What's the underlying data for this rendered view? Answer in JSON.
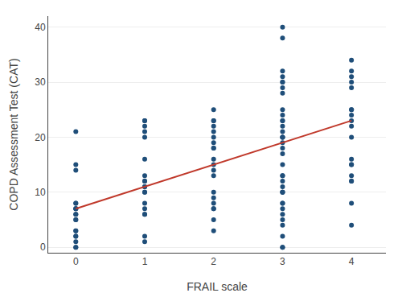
{
  "chart_data": {
    "type": "scatter",
    "xlabel": "FRAIL scale",
    "ylabel": "COPD Assessment Test (CAT)",
    "series": [
      {
        "type": "scatter",
        "marker": "circle",
        "color": "#1f4e79",
        "x": [
          0,
          0,
          0,
          0,
          0,
          0,
          0,
          0,
          0,
          0,
          0,
          0,
          0,
          0,
          0,
          0,
          0,
          0,
          0
        ],
        "values": [
          0,
          0,
          1,
          2,
          2,
          3,
          3,
          5,
          5,
          6,
          6,
          7,
          7,
          7,
          8,
          8,
          14,
          15,
          21
        ]
      },
      {
        "type": "scatter",
        "marker": "circle",
        "color": "#1f4e79",
        "x": [
          1,
          1,
          1,
          1,
          1,
          1,
          1,
          1,
          1,
          1,
          1,
          1,
          1,
          1,
          1,
          1,
          1,
          1,
          1
        ],
        "values": [
          1,
          2,
          6,
          6,
          7,
          8,
          10,
          10,
          11,
          11,
          12,
          12,
          13,
          16,
          20,
          21,
          22,
          23,
          23
        ]
      },
      {
        "type": "scatter",
        "marker": "circle",
        "color": "#1f4e79",
        "x": [
          2,
          2,
          2,
          2,
          2,
          2,
          2,
          2,
          2,
          2,
          2,
          2,
          2,
          2,
          2,
          2,
          2,
          2,
          2,
          2
        ],
        "values": [
          3,
          5,
          7,
          7,
          8,
          9,
          10,
          13,
          14,
          15,
          16,
          18,
          18,
          19,
          20,
          21,
          22,
          23,
          23,
          25
        ]
      },
      {
        "type": "scatter",
        "marker": "circle",
        "color": "#1f4e79",
        "x": [
          3,
          3,
          3,
          3,
          3,
          3,
          3,
          3,
          3,
          3,
          3,
          3,
          3,
          3,
          3,
          3,
          3,
          3,
          3,
          3,
          3,
          3,
          3,
          3,
          3,
          3,
          3,
          3,
          3,
          3,
          3,
          3,
          3,
          3,
          3,
          3,
          3
        ],
        "values": [
          0,
          0,
          2,
          4,
          5,
          6,
          7,
          8,
          8,
          10,
          10,
          10,
          11,
          12,
          13,
          13,
          15,
          17,
          18,
          19,
          20,
          20,
          20,
          21,
          22,
          23,
          23,
          24,
          25,
          28,
          29,
          30,
          30,
          31,
          32,
          38,
          40
        ]
      },
      {
        "type": "scatter",
        "marker": "circle",
        "color": "#1f4e79",
        "x": [
          4,
          4,
          4,
          4,
          4,
          4,
          4,
          4,
          4,
          4,
          4,
          4,
          4,
          4,
          4,
          4,
          4,
          4,
          4
        ],
        "values": [
          4,
          8,
          12,
          12,
          13,
          15,
          15,
          16,
          20,
          22,
          23,
          24,
          25,
          25,
          29,
          30,
          31,
          32,
          34
        ]
      },
      {
        "type": "line",
        "line_style": "solid",
        "color": "#c0392b",
        "x": [
          0,
          4
        ],
        "values": [
          7.0,
          23.0
        ]
      }
    ],
    "xlim": [
      -0.4,
      4.5
    ],
    "ylim": [
      -1,
      42
    ],
    "xticks": [
      0,
      1,
      2,
      3,
      4
    ],
    "yticks": [
      0,
      10,
      20,
      30,
      40
    ],
    "grid": "y"
  }
}
